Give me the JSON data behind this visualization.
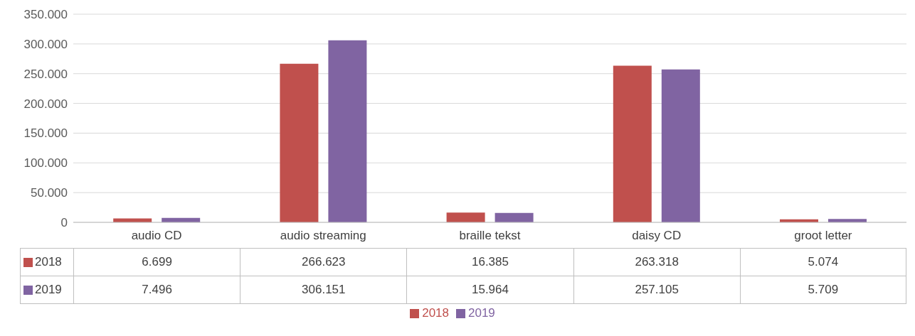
{
  "chart_data": {
    "type": "bar",
    "categories": [
      "audio CD",
      "audio streaming",
      "braille tekst",
      "daisy CD",
      "groot letter"
    ],
    "series": [
      {
        "name": "2018",
        "color": "#c0504d",
        "values": [
          6699,
          266623,
          16385,
          263318,
          5074
        ],
        "value_labels": [
          "6.699",
          "266.623",
          "16.385",
          "263.318",
          "5.074"
        ]
      },
      {
        "name": "2019",
        "color": "#8064a2",
        "values": [
          7496,
          306151,
          15964,
          257105,
          5709
        ],
        "value_labels": [
          "7.496",
          "306.151",
          "15.964",
          "257.105",
          "5.709"
        ]
      }
    ],
    "ylim": [
      0,
      350000
    ],
    "yticks": [
      {
        "value": 0,
        "label": "0"
      },
      {
        "value": 50000,
        "label": "50.000"
      },
      {
        "value": 100000,
        "label": "100.000"
      },
      {
        "value": 150000,
        "label": "150.000"
      },
      {
        "value": 200000,
        "label": "200.000"
      },
      {
        "value": 250000,
        "label": "250.000"
      },
      {
        "value": 300000,
        "label": "300.000"
      },
      {
        "value": 350000,
        "label": "350.000"
      }
    ],
    "grid": "y",
    "legend": "bottom"
  }
}
